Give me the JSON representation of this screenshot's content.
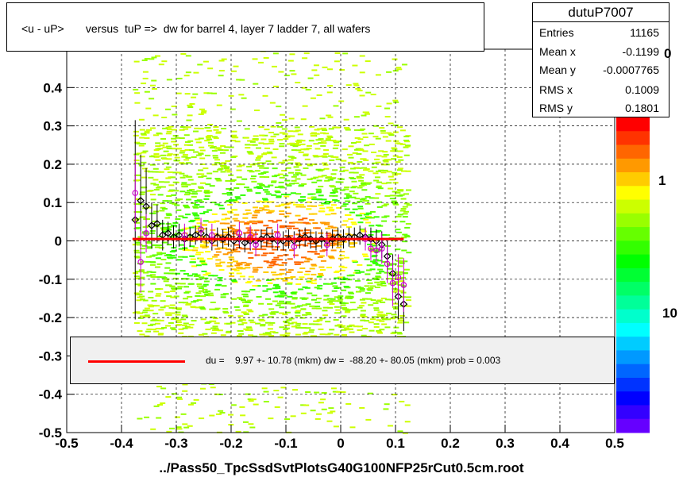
{
  "window": {
    "title": "<u - uP>       versus  tuP =>  dw for barrel 4, layer 7 ladder 7, all wafers"
  },
  "stats": {
    "name": "dutuP7007",
    "rows": [
      {
        "key": "Entries",
        "value": "11165"
      },
      {
        "key": "Mean x",
        "value": "-0.1199"
      },
      {
        "key": "Mean y",
        "value": "-0.0007765"
      },
      {
        "key": "RMS x",
        "value": "0.1009"
      },
      {
        "key": "RMS y",
        "value": "0.1801"
      }
    ]
  },
  "fit": {
    "text": "du =    9.97 +- 10.78 (mkm) dw =  -88.20 +- 80.05 (mkm) prob = 0.003",
    "line_color": "#ff0000"
  },
  "palette": {
    "labels": [
      "0",
      "1",
      "10"
    ]
  },
  "chart_data": {
    "type": "scatter",
    "title": "<u - uP>       versus  tuP =>  dw for barrel 4, layer 7 ladder 7, all wafers",
    "xlabel": "../Pass50_TpcSsdSvtPlotsG40G100NFP25rCut0.5cm.root",
    "ylabel": "",
    "xlim": [
      -0.5,
      0.5
    ],
    "ylim": [
      -0.5,
      0.5
    ],
    "x_ticks": [
      "-0.5",
      "-0.4",
      "-0.3",
      "-0.2",
      "-0.1",
      "0",
      "0.1",
      "0.2",
      "0.3",
      "0.4",
      "0.5"
    ],
    "y_ticks": [
      "-0.5",
      "-0.4",
      "-0.3",
      "-0.2",
      "-0.1",
      "0",
      "0.1",
      "0.2",
      "0.3",
      "0.4"
    ],
    "grid": true,
    "series": [
      {
        "marker": "open-diamond",
        "color": "#000000",
        "x": [
          -0.375,
          -0.365,
          -0.355,
          -0.345,
          -0.335,
          -0.325,
          -0.315,
          -0.305,
          -0.295,
          -0.285,
          -0.275,
          -0.265,
          -0.255,
          -0.245,
          -0.235,
          -0.225,
          -0.215,
          -0.205,
          -0.195,
          -0.185,
          -0.175,
          -0.165,
          -0.155,
          -0.145,
          -0.135,
          -0.125,
          -0.115,
          -0.105,
          -0.095,
          -0.085,
          -0.075,
          -0.065,
          -0.055,
          -0.045,
          -0.035,
          -0.025,
          -0.015,
          -0.005,
          0.005,
          0.015,
          0.025,
          0.035,
          0.045,
          0.055,
          0.065,
          0.075,
          0.085,
          0.095,
          0.105,
          0.115
        ],
        "y": [
          0.055,
          0.105,
          0.09,
          0.04,
          0.045,
          0.015,
          0.02,
          0.01,
          0.015,
          0.005,
          0.01,
          0.015,
          0.02,
          0.01,
          0.0,
          0.01,
          0.005,
          0.01,
          0.0,
          0.005,
          -0.005,
          0.0,
          0.0,
          0.005,
          0.01,
          0.005,
          0.0,
          0.0,
          0.005,
          0.0,
          0.005,
          0.01,
          0.005,
          0.0,
          0.005,
          0.0,
          0.005,
          0.01,
          0.005,
          0.01,
          0.01,
          0.015,
          0.01,
          0.005,
          0.0,
          -0.01,
          -0.04,
          -0.085,
          -0.145,
          -0.165
        ],
        "err": [
          0.26,
          0.12,
          0.1,
          0.06,
          0.05,
          0.04,
          0.03,
          0.03,
          0.03,
          0.03,
          0.025,
          0.025,
          0.025,
          0.025,
          0.025,
          0.025,
          0.025,
          0.025,
          0.025,
          0.025,
          0.025,
          0.025,
          0.025,
          0.025,
          0.025,
          0.025,
          0.025,
          0.025,
          0.025,
          0.025,
          0.025,
          0.025,
          0.025,
          0.025,
          0.025,
          0.025,
          0.025,
          0.025,
          0.025,
          0.025,
          0.025,
          0.025,
          0.025,
          0.03,
          0.03,
          0.035,
          0.04,
          0.05,
          0.06,
          0.07
        ]
      },
      {
        "marker": "open-circle",
        "color": "#cc00cc",
        "x": [
          -0.375,
          -0.365,
          -0.355,
          -0.285,
          -0.255,
          -0.235,
          -0.185,
          -0.165,
          -0.155,
          -0.115,
          -0.085,
          -0.025,
          0.045,
          0.055,
          0.065,
          0.075,
          0.085,
          0.095,
          0.105,
          0.115
        ],
        "y": [
          0.125,
          -0.055,
          0.02,
          0.015,
          0.03,
          0.015,
          0.02,
          0.01,
          -0.01,
          0.015,
          -0.015,
          -0.01,
          0.005,
          -0.02,
          -0.025,
          -0.02,
          -0.06,
          -0.11,
          -0.095,
          -0.115
        ],
        "err": [
          0.1,
          0.08,
          0.05,
          0.03,
          0.03,
          0.03,
          0.03,
          0.03,
          0.03,
          0.03,
          0.03,
          0.03,
          0.03,
          0.03,
          0.03,
          0.04,
          0.05,
          0.06,
          0.06,
          0.07
        ]
      }
    ],
    "fit_line": {
      "x": [
        -0.38,
        0.115
      ],
      "y": [
        0.005,
        0.005
      ],
      "color": "#ff0000"
    }
  }
}
